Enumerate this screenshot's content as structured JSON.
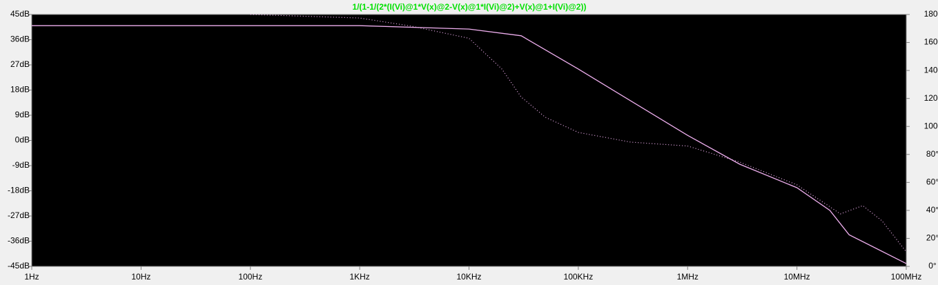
{
  "chart_data": {
    "type": "line",
    "title": "1/(1-1/(2*(I(Vi)@1*V(x)@2-V(x)@1*I(Vi)@2)+V(x)@1+I(Vi)@2))",
    "title_color": "#00e000",
    "xscale": "log",
    "x": [
      1,
      1000,
      10000,
      30000,
      100000,
      1000000,
      3000000,
      10000000,
      20000000,
      30000000,
      100000000
    ],
    "xlim": [
      1,
      100000000
    ],
    "xticks": [
      {
        "value": 1,
        "label": "1Hz"
      },
      {
        "value": 10,
        "label": "10Hz"
      },
      {
        "value": 100,
        "label": "100Hz"
      },
      {
        "value": 1000,
        "label": "1KHz"
      },
      {
        "value": 10000,
        "label": "10KHz"
      },
      {
        "value": 100000,
        "label": "100KHz"
      },
      {
        "value": 1000000,
        "label": "1MHz"
      },
      {
        "value": 10000000,
        "label": "10MHz"
      },
      {
        "value": 100000000,
        "label": "100MHz"
      }
    ],
    "ylim": [
      -45,
      45
    ],
    "yticks": [
      {
        "value": 45,
        "label": "45dB"
      },
      {
        "value": 36,
        "label": "36dB"
      },
      {
        "value": 27,
        "label": "27dB"
      },
      {
        "value": 18,
        "label": "18dB"
      },
      {
        "value": 9,
        "label": "9dB"
      },
      {
        "value": 0,
        "label": "0dB"
      },
      {
        "value": -9,
        "label": "-9dB"
      },
      {
        "value": -18,
        "label": "-18dB"
      },
      {
        "value": -27,
        "label": "-27dB"
      },
      {
        "value": -36,
        "label": "-36dB"
      },
      {
        "value": -45,
        "label": "-45dB"
      }
    ],
    "y2lim": [
      0,
      180
    ],
    "y2ticks": [
      {
        "value": 180,
        "label": "180°"
      },
      {
        "value": 160,
        "label": "160°"
      },
      {
        "value": 140,
        "label": "140°"
      },
      {
        "value": 120,
        "label": "120°"
      },
      {
        "value": 100,
        "label": "100°"
      },
      {
        "value": 80,
        "label": "80°"
      },
      {
        "value": 60,
        "label": "60°"
      },
      {
        "value": 40,
        "label": "40°"
      },
      {
        "value": 20,
        "label": "20°"
      },
      {
        "value": 0,
        "label": "0°"
      }
    ],
    "series": [
      {
        "color": "#f0b0f0",
        "style": "solid",
        "x": [
          1,
          1000,
          10000,
          30000,
          100000,
          1000000,
          3000000,
          10000000,
          20000000,
          30000000,
          100000000
        ],
        "values": [
          41,
          41,
          39.8,
          37.4,
          25.5,
          1.8,
          -8.5,
          -16.9,
          -25,
          -33.7,
          -44
        ]
      },
      {
        "color": "#f0b0f0",
        "style": "dotted",
        "axis": "y2",
        "x": [
          100,
          1000,
          3000,
          10000,
          20000,
          30000,
          50000,
          100000,
          300000,
          1000000,
          3000000,
          10000000,
          20000000,
          25000000,
          40000000,
          60000000,
          100000000
        ],
        "values": [
          180,
          177.5,
          171.6,
          163,
          141,
          121,
          106.5,
          95.7,
          88.8,
          86,
          74.5,
          58.3,
          42.6,
          37.5,
          43.4,
          32.5,
          10.4
        ]
      }
    ]
  }
}
